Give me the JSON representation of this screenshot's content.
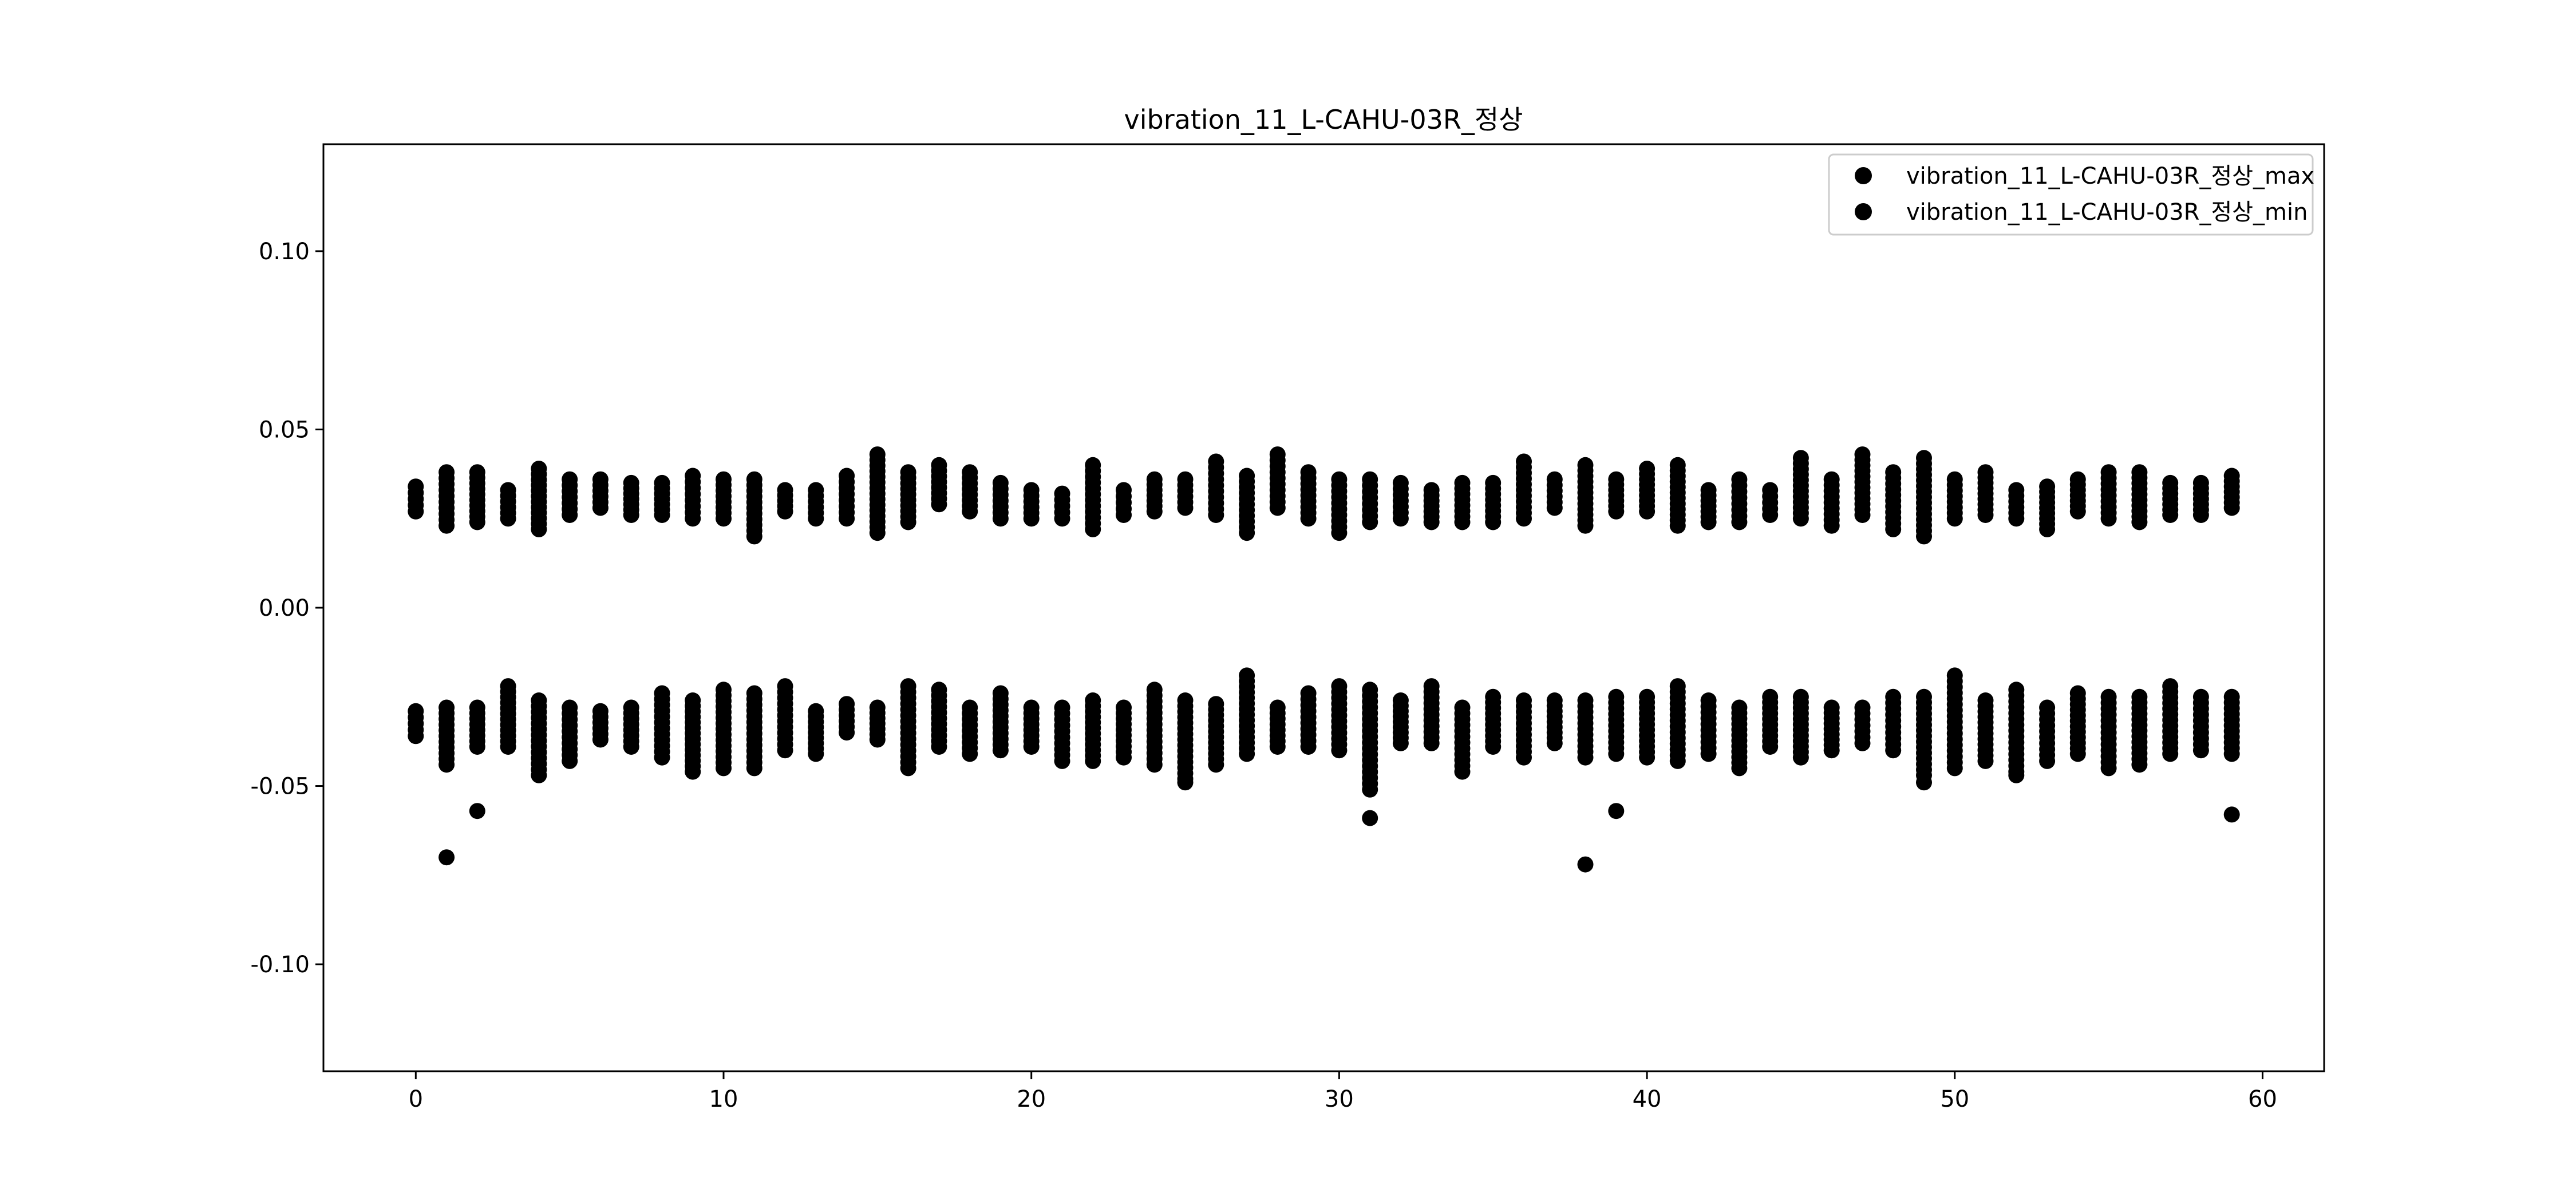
{
  "chart_data": {
    "type": "scatter",
    "title": "vibration_11_L-CAHU-03R_정상",
    "xlabel": "",
    "ylabel": "",
    "xlim": [
      -3,
      62
    ],
    "ylim": [
      -0.13,
      0.13
    ],
    "xticks": [
      0,
      10,
      20,
      30,
      40,
      50,
      60
    ],
    "xtick_labels": [
      "0",
      "10",
      "20",
      "30",
      "40",
      "50",
      "60"
    ],
    "yticks": [
      -0.1,
      -0.05,
      0.0,
      0.05,
      0.1
    ],
    "ytick_labels": [
      "-0.10",
      "-0.05",
      "0.00",
      "0.05",
      "0.10"
    ],
    "grid": false,
    "legend": "top-right",
    "x": [
      0,
      1,
      2,
      3,
      4,
      5,
      6,
      7,
      8,
      9,
      10,
      11,
      12,
      13,
      14,
      15,
      16,
      17,
      18,
      19,
      20,
      21,
      22,
      23,
      24,
      25,
      26,
      27,
      28,
      29,
      30,
      31,
      32,
      33,
      34,
      35,
      36,
      37,
      38,
      39,
      40,
      41,
      42,
      43,
      44,
      45,
      46,
      47,
      48,
      49,
      50,
      51,
      52,
      53,
      54,
      55,
      56,
      57,
      58,
      59
    ],
    "series": [
      {
        "name": "vibration_11_L-CAHU-03R_정상_max",
        "color": "#000000",
        "upper": [
          0.034,
          0.038,
          0.038,
          0.033,
          0.039,
          0.036,
          0.036,
          0.035,
          0.035,
          0.037,
          0.036,
          0.036,
          0.033,
          0.033,
          0.037,
          0.043,
          0.038,
          0.04,
          0.038,
          0.035,
          0.033,
          0.032,
          0.04,
          0.033,
          0.036,
          0.036,
          0.041,
          0.037,
          0.043,
          0.038,
          0.036,
          0.036,
          0.035,
          0.033,
          0.035,
          0.035,
          0.041,
          0.036,
          0.04,
          0.036,
          0.039,
          0.04,
          0.033,
          0.036,
          0.033,
          0.042,
          0.036,
          0.043,
          0.038,
          0.042,
          0.036,
          0.038,
          0.033,
          0.034,
          0.036,
          0.038,
          0.038,
          0.035,
          0.035,
          0.037
        ],
        "lower": [
          0.027,
          0.023,
          0.024,
          0.025,
          0.022,
          0.026,
          0.028,
          0.026,
          0.026,
          0.025,
          0.025,
          0.02,
          0.027,
          0.025,
          0.025,
          0.021,
          0.024,
          0.029,
          0.027,
          0.025,
          0.025,
          0.025,
          0.022,
          0.026,
          0.027,
          0.028,
          0.026,
          0.021,
          0.028,
          0.025,
          0.021,
          0.024,
          0.025,
          0.024,
          0.024,
          0.024,
          0.025,
          0.028,
          0.023,
          0.027,
          0.027,
          0.023,
          0.024,
          0.024,
          0.026,
          0.025,
          0.023,
          0.026,
          0.022,
          0.02,
          0.025,
          0.026,
          0.025,
          0.022,
          0.027,
          0.025,
          0.024,
          0.026,
          0.026,
          0.028
        ],
        "outliers": []
      },
      {
        "name": "vibration_11_L-CAHU-03R_정상_min",
        "color": "#000000",
        "upper": [
          -0.029,
          -0.028,
          -0.028,
          -0.022,
          -0.026,
          -0.028,
          -0.029,
          -0.028,
          -0.024,
          -0.026,
          -0.023,
          -0.024,
          -0.022,
          -0.029,
          -0.027,
          -0.028,
          -0.022,
          -0.023,
          -0.028,
          -0.024,
          -0.028,
          -0.028,
          -0.026,
          -0.028,
          -0.023,
          -0.026,
          -0.027,
          -0.019,
          -0.028,
          -0.024,
          -0.022,
          -0.023,
          -0.026,
          -0.022,
          -0.028,
          -0.025,
          -0.026,
          -0.026,
          -0.026,
          -0.025,
          -0.025,
          -0.022,
          -0.026,
          -0.028,
          -0.025,
          -0.025,
          -0.028,
          -0.028,
          -0.025,
          -0.025,
          -0.019,
          -0.026,
          -0.023,
          -0.028,
          -0.024,
          -0.025,
          -0.025,
          -0.022,
          -0.025,
          -0.025
        ],
        "lower": [
          -0.036,
          -0.044,
          -0.039,
          -0.039,
          -0.047,
          -0.043,
          -0.037,
          -0.039,
          -0.042,
          -0.046,
          -0.045,
          -0.045,
          -0.04,
          -0.041,
          -0.035,
          -0.037,
          -0.045,
          -0.039,
          -0.041,
          -0.04,
          -0.039,
          -0.043,
          -0.043,
          -0.042,
          -0.044,
          -0.048,
          -0.044,
          -0.041,
          -0.039,
          -0.039,
          -0.04,
          -0.051,
          -0.038,
          -0.038,
          -0.046,
          -0.039,
          -0.042,
          -0.038,
          -0.042,
          -0.041,
          -0.042,
          -0.043,
          -0.041,
          -0.045,
          -0.039,
          -0.042,
          -0.04,
          -0.038,
          -0.04,
          -0.047,
          -0.045,
          -0.043,
          -0.046,
          -0.043,
          -0.041,
          -0.045,
          -0.044,
          -0.041,
          -0.04,
          -0.041
        ],
        "outliers": [
          [
            1,
            -0.07
          ],
          [
            2,
            -0.057
          ],
          [
            25,
            -0.049
          ],
          [
            31,
            -0.059
          ],
          [
            38,
            -0.072
          ],
          [
            39,
            -0.057
          ],
          [
            49,
            -0.049
          ],
          [
            52,
            -0.047
          ],
          [
            59,
            -0.058
          ]
        ]
      }
    ]
  }
}
